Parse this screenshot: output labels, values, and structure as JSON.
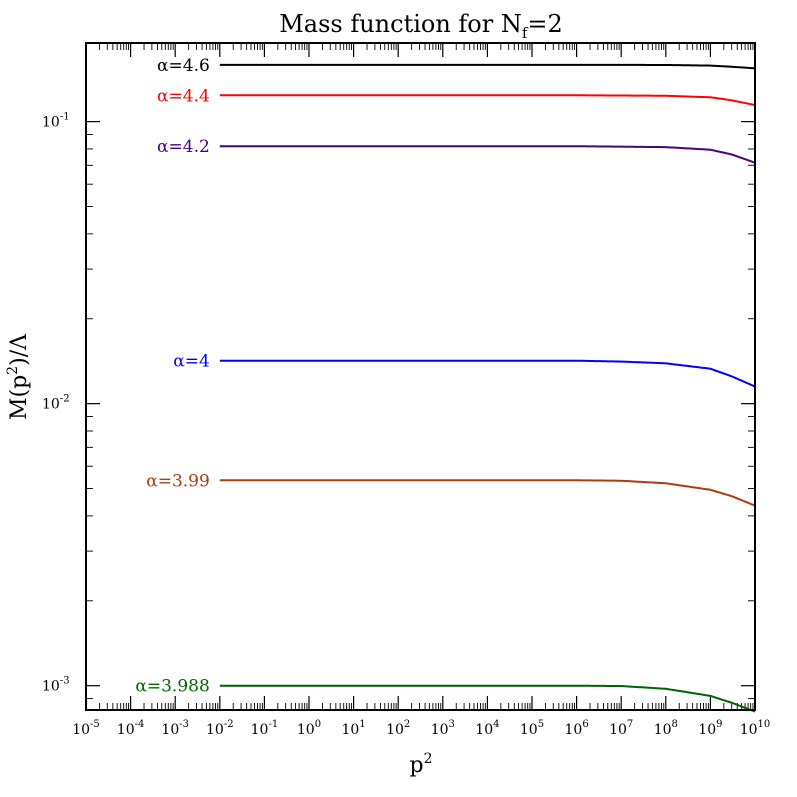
{
  "chart_data": {
    "type": "line",
    "title": "Mass function for N",
    "title_sub": "f",
    "title_suffix": "=2",
    "xlabel": "p",
    "xlabel_sup": "2",
    "ylabel": "M(p",
    "ylabel_sup": "2",
    "ylabel_suffix": ")/Λ",
    "x_scale": "log",
    "y_scale": "log",
    "xlim": [
      1e-05,
      10000000000.0
    ],
    "ylim": [
      0.00082,
      0.19
    ],
    "grid": false,
    "x_ticks": [
      {
        "value": 1e-05,
        "base": "10",
        "exp": "-5"
      },
      {
        "value": 0.0001,
        "base": "10",
        "exp": "-4"
      },
      {
        "value": 0.001,
        "base": "10",
        "exp": "-3"
      },
      {
        "value": 0.01,
        "base": "10",
        "exp": "-2"
      },
      {
        "value": 0.1,
        "base": "10",
        "exp": "-1"
      },
      {
        "value": 1.0,
        "base": "10",
        "exp": "0"
      },
      {
        "value": 10.0,
        "base": "10",
        "exp": "1"
      },
      {
        "value": 100.0,
        "base": "10",
        "exp": "2"
      },
      {
        "value": 1000.0,
        "base": "10",
        "exp": "3"
      },
      {
        "value": 10000.0,
        "base": "10",
        "exp": "4"
      },
      {
        "value": 100000.0,
        "base": "10",
        "exp": "5"
      },
      {
        "value": 1000000.0,
        "base": "10",
        "exp": "6"
      },
      {
        "value": 10000000.0,
        "base": "10",
        "exp": "7"
      },
      {
        "value": 100000000.0,
        "base": "10",
        "exp": "8"
      },
      {
        "value": 1000000000.0,
        "base": "10",
        "exp": "9"
      },
      {
        "value": 10000000000.0,
        "base": "10",
        "exp": "10"
      }
    ],
    "y_ticks": [
      {
        "value": 0.001,
        "base": "10",
        "exp": "-3"
      },
      {
        "value": 0.01,
        "base": "10",
        "exp": "-2"
      },
      {
        "value": 0.1,
        "base": "10",
        "exp": "-1"
      }
    ],
    "series": [
      {
        "name": "α=4.6",
        "color": "#000000",
        "x": [
          0.01,
          1000000.0,
          100000000.0,
          1000000000.0,
          3000000000.0,
          10000000000.0
        ],
        "y": [
          0.159,
          0.159,
          0.1588,
          0.158,
          0.1565,
          0.1545
        ]
      },
      {
        "name": "α=4.4",
        "color": "#ff0000",
        "x": [
          0.01,
          1000000.0,
          100000000.0,
          1000000000.0,
          3000000000.0,
          10000000000.0
        ],
        "y": [
          0.124,
          0.124,
          0.1235,
          0.122,
          0.119,
          0.1145
        ]
      },
      {
        "name": "α=4.2",
        "color": "#4b0082",
        "x": [
          0.01,
          1000000.0,
          100000000.0,
          1000000000.0,
          3000000000.0,
          10000000000.0
        ],
        "y": [
          0.0818,
          0.0818,
          0.0812,
          0.0795,
          0.0765,
          0.0715
        ]
      },
      {
        "name": "α=4",
        "color": "#0000ff",
        "x": [
          0.01,
          1000000.0,
          10000000.0,
          100000000.0,
          1000000000.0,
          3000000000.0,
          10000000000.0
        ],
        "y": [
          0.0142,
          0.0142,
          0.0141,
          0.0139,
          0.0133,
          0.0125,
          0.0115
        ]
      },
      {
        "name": "α=3.99",
        "color": "#b03a0e",
        "x": [
          0.01,
          1000000.0,
          10000000.0,
          100000000.0,
          1000000000.0,
          3000000000.0,
          10000000000.0
        ],
        "y": [
          0.00535,
          0.00535,
          0.00533,
          0.00522,
          0.00495,
          0.0047,
          0.00435
        ]
      },
      {
        "name": "α=3.988",
        "color": "#006400",
        "x": [
          0.01,
          1000000.0,
          10000000.0,
          100000000.0,
          1000000000.0,
          3000000000.0,
          10000000000.0
        ],
        "y": [
          0.001,
          0.001,
          0.000997,
          0.000975,
          0.00092,
          0.00087,
          0.00081
        ]
      }
    ]
  }
}
